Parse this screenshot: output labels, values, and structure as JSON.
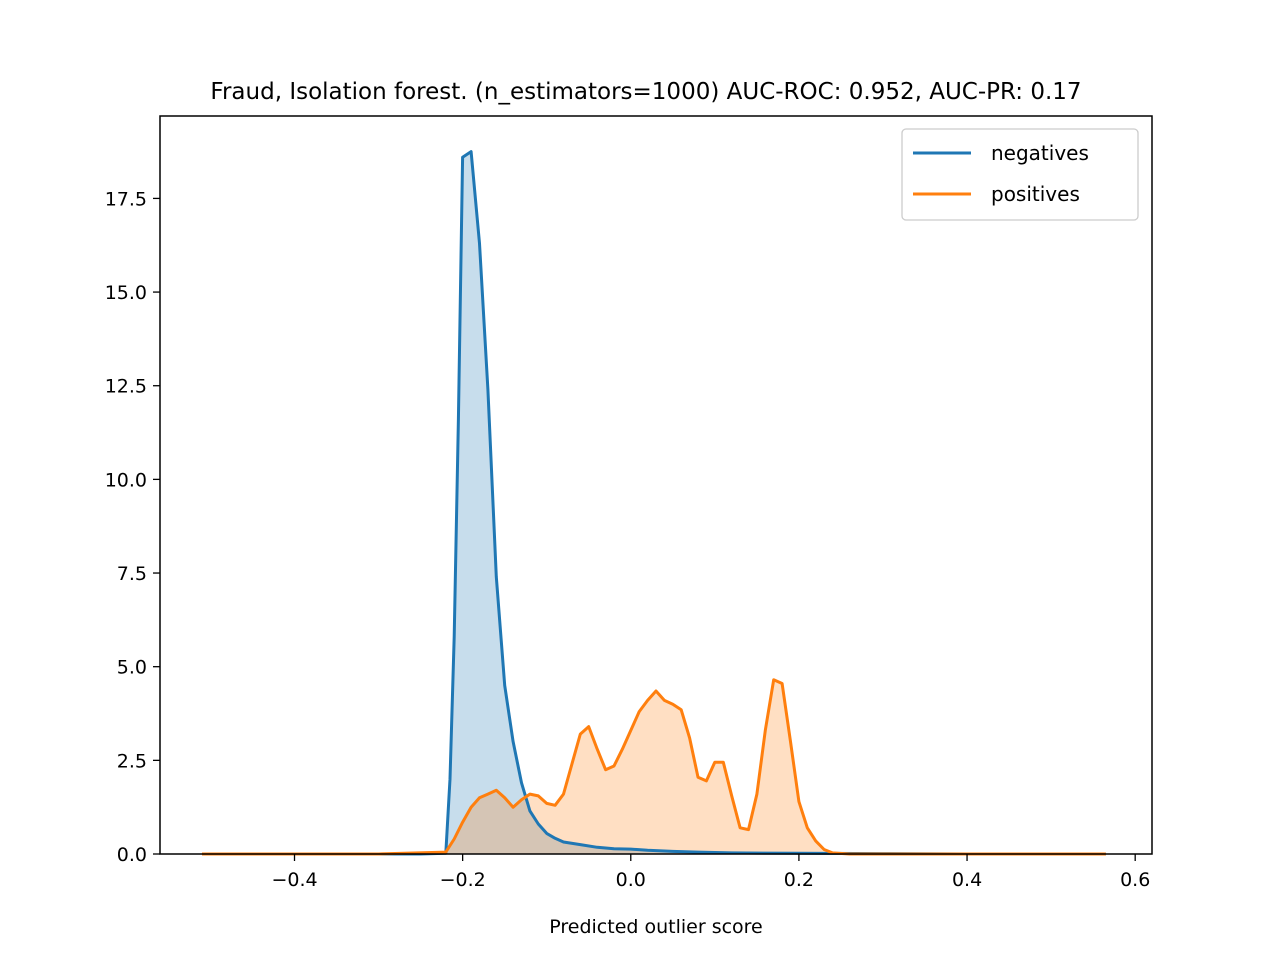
{
  "chart_data": {
    "type": "area",
    "title": "Fraud, Isolation forest. (n_estimators=1000) AUC-ROC: 0.952, AUC-PR: 0.17",
    "xlabel": "Predicted outlier score",
    "ylabel": "",
    "xlim": [
      -0.56,
      0.62
    ],
    "ylim": [
      0,
      19.7
    ],
    "xticks": [
      -0.4,
      -0.2,
      0.0,
      0.2,
      0.4,
      0.6
    ],
    "xtick_labels": [
      "−0.4",
      "−0.2",
      "0.0",
      "0.2",
      "0.4",
      "0.6"
    ],
    "yticks": [
      0,
      2.5,
      5.0,
      7.5,
      10.0,
      12.5,
      15.0,
      17.5
    ],
    "ytick_labels": [
      "0.0",
      "2.5",
      "5.0",
      "7.5",
      "10.0",
      "12.5",
      "15.0",
      "17.5"
    ],
    "grid": false,
    "legend_position": "top-right",
    "series": [
      {
        "name": "negatives",
        "color": "#1f77b4",
        "fill_color": "#c6dbec",
        "points": [
          [
            -0.51,
            0.0
          ],
          [
            -0.3,
            0.0
          ],
          [
            -0.25,
            0.0
          ],
          [
            -0.22,
            0.02
          ],
          [
            -0.215,
            2.0
          ],
          [
            -0.21,
            5.8
          ],
          [
            -0.205,
            11.6
          ],
          [
            -0.2,
            18.6
          ],
          [
            -0.19,
            18.75
          ],
          [
            -0.18,
            16.3
          ],
          [
            -0.17,
            12.4
          ],
          [
            -0.16,
            7.4
          ],
          [
            -0.15,
            4.5
          ],
          [
            -0.14,
            3.0
          ],
          [
            -0.13,
            1.9
          ],
          [
            -0.12,
            1.15
          ],
          [
            -0.11,
            0.8
          ],
          [
            -0.1,
            0.55
          ],
          [
            -0.09,
            0.42
          ],
          [
            -0.08,
            0.32
          ],
          [
            -0.06,
            0.25
          ],
          [
            -0.04,
            0.18
          ],
          [
            -0.02,
            0.14
          ],
          [
            0.0,
            0.13
          ],
          [
            0.02,
            0.1
          ],
          [
            0.05,
            0.07
          ],
          [
            0.08,
            0.05
          ],
          [
            0.12,
            0.03
          ],
          [
            0.2,
            0.02
          ],
          [
            0.3,
            0.01
          ],
          [
            0.4,
            0.0
          ],
          [
            0.565,
            0.0
          ]
        ]
      },
      {
        "name": "positives",
        "color": "#ff7f0e",
        "fill_color": "#fed9b9",
        "points": [
          [
            -0.51,
            0.0
          ],
          [
            -0.3,
            0.0
          ],
          [
            -0.22,
            0.05
          ],
          [
            -0.21,
            0.4
          ],
          [
            -0.2,
            0.85
          ],
          [
            -0.19,
            1.25
          ],
          [
            -0.18,
            1.5
          ],
          [
            -0.17,
            1.6
          ],
          [
            -0.16,
            1.7
          ],
          [
            -0.15,
            1.5
          ],
          [
            -0.14,
            1.25
          ],
          [
            -0.13,
            1.45
          ],
          [
            -0.12,
            1.6
          ],
          [
            -0.11,
            1.55
          ],
          [
            -0.1,
            1.35
          ],
          [
            -0.09,
            1.3
          ],
          [
            -0.08,
            1.6
          ],
          [
            -0.07,
            2.4
          ],
          [
            -0.06,
            3.2
          ],
          [
            -0.05,
            3.4
          ],
          [
            -0.04,
            2.8
          ],
          [
            -0.03,
            2.25
          ],
          [
            -0.02,
            2.35
          ],
          [
            -0.01,
            2.8
          ],
          [
            0.0,
            3.3
          ],
          [
            0.01,
            3.8
          ],
          [
            0.02,
            4.1
          ],
          [
            0.03,
            4.35
          ],
          [
            0.04,
            4.1
          ],
          [
            0.05,
            4.0
          ],
          [
            0.06,
            3.85
          ],
          [
            0.07,
            3.1
          ],
          [
            0.08,
            2.05
          ],
          [
            0.09,
            1.95
          ],
          [
            0.1,
            2.45
          ],
          [
            0.11,
            2.45
          ],
          [
            0.12,
            1.55
          ],
          [
            0.13,
            0.7
          ],
          [
            0.14,
            0.65
          ],
          [
            0.15,
            1.6
          ],
          [
            0.16,
            3.3
          ],
          [
            0.17,
            4.65
          ],
          [
            0.18,
            4.55
          ],
          [
            0.19,
            3.0
          ],
          [
            0.2,
            1.4
          ],
          [
            0.21,
            0.7
          ],
          [
            0.22,
            0.35
          ],
          [
            0.23,
            0.12
          ],
          [
            0.24,
            0.03
          ],
          [
            0.26,
            0.0
          ],
          [
            0.4,
            0.0
          ],
          [
            0.565,
            0.0
          ]
        ]
      }
    ]
  }
}
